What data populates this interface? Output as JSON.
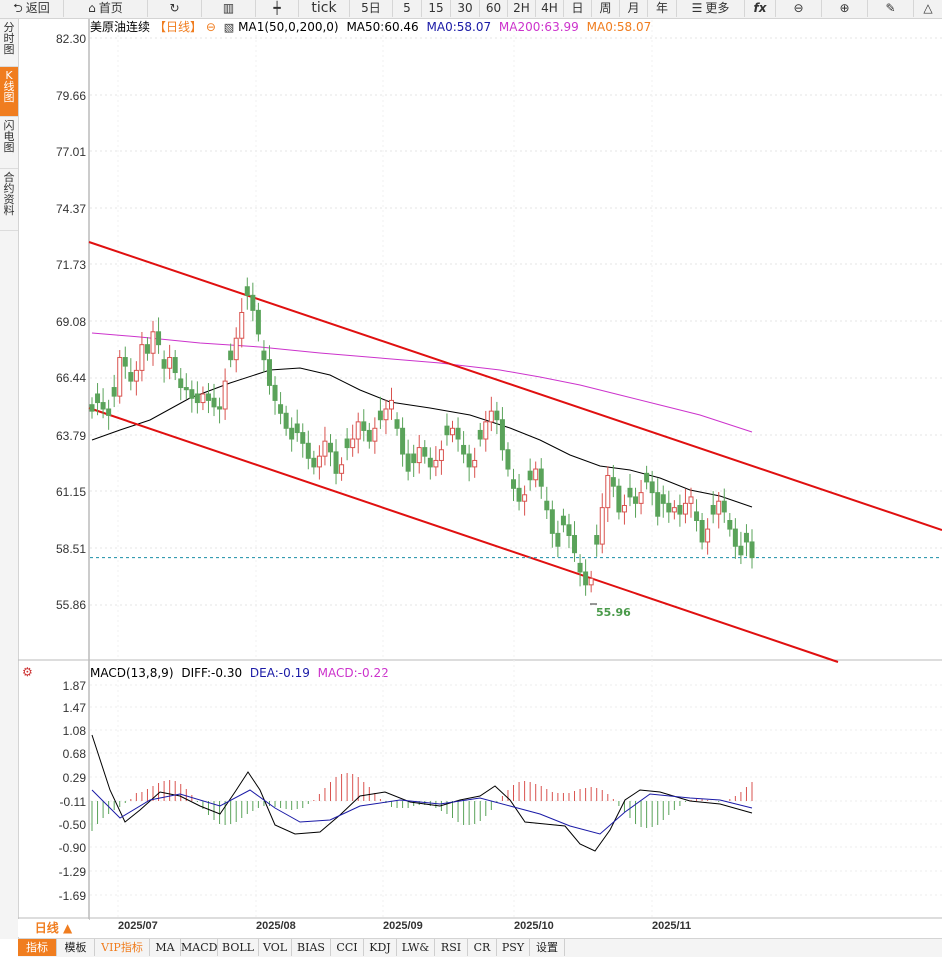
{
  "toolbar": {
    "back": "返回",
    "home": "首页",
    "tick": "tick",
    "day5": "5日",
    "m5": "5",
    "m15": "15",
    "m30": "30",
    "m60": "60",
    "h2": "2H",
    "h4": "4H",
    "d": "日",
    "w": "周",
    "mo": "月",
    "y": "年",
    "more": "更多",
    "fx": "fx"
  },
  "sidebar": {
    "items": [
      "分时图",
      "K线图",
      "闪电图",
      "合约资料"
    ],
    "active_index": 1
  },
  "header": {
    "symbol": "美原油连续",
    "period_tag": "【日线】",
    "toggle": "⊖",
    "ma_label": "MA1(50,0,200,0)",
    "ma50": "MA50:60.46",
    "ma0": "MA0:58.07",
    "ma200": "MA200:63.99",
    "ma0b": "MA0:58.07"
  },
  "macd_header": {
    "label": "MACD(13,8,9)",
    "diff": "DIFF:-0.30",
    "dea": "DEA:-0.19",
    "macd": "MACD:-0.22"
  },
  "price_axis": [
    "82.30",
    "79.66",
    "77.01",
    "74.37",
    "71.73",
    "69.08",
    "66.44",
    "63.79",
    "61.15",
    "58.51",
    "55.86"
  ],
  "macd_axis": [
    "1.87",
    "1.47",
    "1.08",
    "0.68",
    "0.29",
    "-0.11",
    "-0.50",
    "-0.90",
    "-1.29",
    "-1.69"
  ],
  "date_axis": [
    "2025/07",
    "2025/08",
    "2025/09",
    "2025/10",
    "2025/11"
  ],
  "low_label": "55.96",
  "period_button": "日线 ▲",
  "bottom_tabs": [
    "指标",
    "模板",
    "VIP指标",
    "MA",
    "MACD",
    "BOLL",
    "VOL",
    "BIAS",
    "CCI",
    "KDJ",
    "LW&",
    "RSI",
    "CR",
    "PSY",
    "设置"
  ],
  "colors": {
    "up": "#d9534f",
    "down": "#5aa35a",
    "ma50": "#000000",
    "ma200": "#cc33cc",
    "channel": "#e01010",
    "accent": "#f07d1f",
    "dea": "#1a1aa6"
  },
  "chart_data": {
    "type": "candlestick",
    "ylim": [
      55.86,
      82.3
    ],
    "last_price": 58.07,
    "closes": [
      64.9,
      65.3,
      65.0,
      64.7,
      65.6,
      67.4,
      67.0,
      66.3,
      66.8,
      68.0,
      67.6,
      68.6,
      68.0,
      66.9,
      67.4,
      66.7,
      66.0,
      65.9,
      65.5,
      65.3,
      65.7,
      65.4,
      65.1,
      65.0,
      66.3,
      67.3,
      68.3,
      69.5,
      70.3,
      69.6,
      68.5,
      67.3,
      66.1,
      65.4,
      64.8,
      64.1,
      63.6,
      63.9,
      63.4,
      62.7,
      62.3,
      62.8,
      63.5,
      63.0,
      62.0,
      62.4,
      63.2,
      63.6,
      64.4,
      64.0,
      63.5,
      64.1,
      64.5,
      65.0,
      65.4,
      64.1,
      62.9,
      62.1,
      62.5,
      63.2,
      62.8,
      62.3,
      62.6,
      63.1,
      63.8,
      64.1,
      63.6,
      62.9,
      62.3,
      62.6,
      63.6,
      64.4,
      64.9,
      64.5,
      63.1,
      62.2,
      61.3,
      60.7,
      61.0,
      61.7,
      62.2,
      61.4,
      60.3,
      59.2,
      58.6,
      59.6,
      59.1,
      58.3,
      57.4,
      56.8,
      57.1,
      58.7,
      60.4,
      61.9,
      61.4,
      60.2,
      60.5,
      60.9,
      60.6,
      61.1,
      61.6,
      61.1,
      60.0,
      60.6,
      60.2,
      60.4,
      60.1,
      60.6,
      60.9,
      59.8,
      58.8,
      59.4,
      60.1,
      60.7,
      60.2,
      59.4,
      58.6,
      58.2,
      58.8,
      58.07
    ],
    "macd_ylim": [
      -1.89,
      1.95
    ]
  }
}
